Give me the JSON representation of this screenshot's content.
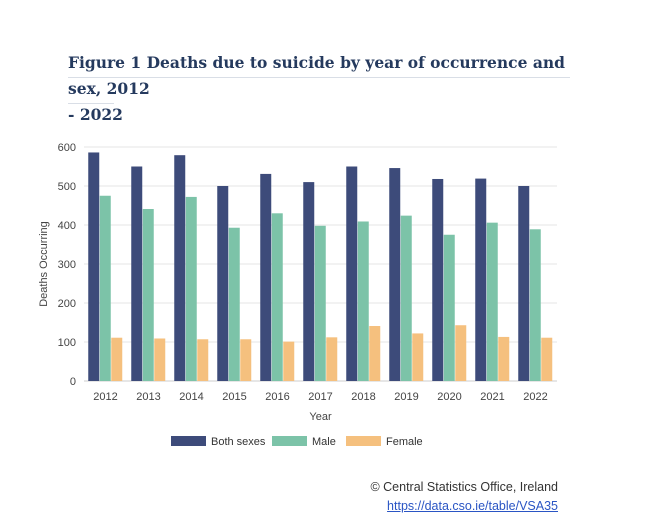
{
  "title": "Figure 1 Deaths due to suicide by year of occurrence and sex, 2012 - 2022",
  "title_lines": [
    "Figure 1 Deaths due to suicide by year of occurrence and sex, 2012",
    "- 2022"
  ],
  "credit": "© Central Statistics Office, Ireland",
  "source_link": "https://data.cso.ie/table/VSA35",
  "colors": {
    "Both sexes": "#3d4b7a",
    "Male": "#7cc3a8",
    "Female": "#f5c07e"
  },
  "chart_data": {
    "type": "bar",
    "title": "Figure 1 Deaths due to suicide by year of occurrence and sex, 2012 - 2022",
    "xlabel": "Year",
    "ylabel": "Deaths Occurring",
    "categories": [
      "2012",
      "2013",
      "2014",
      "2015",
      "2016",
      "2017",
      "2018",
      "2019",
      "2020",
      "2021",
      "2022"
    ],
    "series": [
      {
        "name": "Both sexes",
        "values": [
          586,
          550,
          579,
          500,
          531,
          510,
          550,
          546,
          518,
          519,
          500
        ]
      },
      {
        "name": "Male",
        "values": [
          475,
          441,
          472,
          393,
          430,
          398,
          409,
          424,
          375,
          406,
          389
        ]
      },
      {
        "name": "Female",
        "values": [
          111,
          109,
          107,
          107,
          101,
          112,
          141,
          122,
          143,
          113,
          111
        ]
      }
    ],
    "ylim": [
      0,
      600
    ],
    "yticks": [
      0,
      100,
      200,
      300,
      400,
      500,
      600
    ],
    "grid": true,
    "legend": "bottom"
  }
}
